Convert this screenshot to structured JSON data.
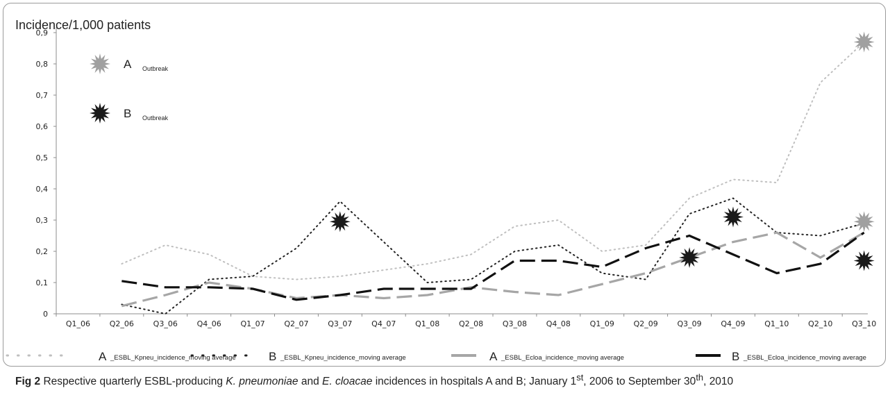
{
  "chart_data": {
    "type": "line",
    "ylabel": "Incidence/1,000 patients",
    "ylim": [
      0,
      0.9
    ],
    "yticks": [
      "0",
      "0,1",
      "0,2",
      "0,3",
      "0,4",
      "0,5",
      "0,6",
      "0,7",
      "0,8",
      "0,9"
    ],
    "categories": [
      "Q1_06",
      "Q2_06",
      "Q3_06",
      "Q4_06",
      "Q1_07",
      "Q2_07",
      "Q3_07",
      "Q4_07",
      "Q1_08",
      "Q2_08",
      "Q3_08",
      "Q4_08",
      "Q1_09",
      "Q2_09",
      "Q3_09",
      "Q4_09",
      "Q1_10",
      "Q2_10",
      "Q3_10"
    ],
    "series": [
      {
        "name": "A _ESBL_Kpneu_incidence_moving average",
        "values": [
          null,
          0.16,
          0.22,
          0.19,
          0.12,
          0.11,
          0.12,
          0.14,
          0.16,
          0.19,
          0.28,
          0.3,
          0.2,
          0.22,
          0.37,
          0.43,
          0.42,
          0.74,
          0.87
        ],
        "color": "#bfbfbf",
        "style": "dotted"
      },
      {
        "name": "B _ESBL_Kpneu_incidence_moving average",
        "values": [
          null,
          0.03,
          0.0,
          0.11,
          0.12,
          0.21,
          0.36,
          0.23,
          0.1,
          0.11,
          0.2,
          0.22,
          0.13,
          0.11,
          0.32,
          0.37,
          0.26,
          0.25,
          0.29
        ],
        "color": "#222222",
        "style": "dotted"
      },
      {
        "name": "A _ESBL_Ecloa_incidence_moving average",
        "values": [
          null,
          0.025,
          0.06,
          0.1,
          0.08,
          0.05,
          0.06,
          0.05,
          0.06,
          0.085,
          0.07,
          0.06,
          0.095,
          0.13,
          0.18,
          0.23,
          0.26,
          0.18,
          0.26
        ],
        "color": "#a6a6a6",
        "style": "dashed"
      },
      {
        "name": "B _ESBL_Ecloa_incidence_moving average",
        "values": [
          null,
          0.105,
          0.085,
          0.085,
          0.08,
          0.045,
          0.06,
          0.08,
          0.08,
          0.08,
          0.17,
          0.17,
          0.15,
          0.21,
          0.25,
          0.19,
          0.13,
          0.16,
          0.26
        ],
        "color": "#111111",
        "style": "dashed"
      }
    ],
    "outbreak_markers": [
      {
        "hospital": "A",
        "category": "Q3_10",
        "value": 0.87,
        "color": "#a0a0a0"
      },
      {
        "hospital": "A",
        "category": "Q3_10",
        "value": 0.295,
        "color": "#a0a0a0"
      },
      {
        "hospital": "B",
        "category": "Q3_07",
        "value": 0.295,
        "color": "#1a1a1a"
      },
      {
        "hospital": "B",
        "category": "Q3_09",
        "value": 0.18,
        "color": "#1a1a1a"
      },
      {
        "hospital": "B",
        "category": "Q4_09",
        "value": 0.31,
        "color": "#1a1a1a"
      },
      {
        "hospital": "B",
        "category": "Q3_10",
        "value": 0.17,
        "color": "#1a1a1a"
      }
    ],
    "outbreak_legend": [
      {
        "letter": "A",
        "text": "Outbreak",
        "color": "#a0a0a0"
      },
      {
        "letter": "B",
        "text": "Outbreak",
        "color": "#1a1a1a"
      }
    ],
    "legend": [
      {
        "letter": "A",
        "text": "_ESBL_Kpneu_incidence_moving average"
      },
      {
        "letter": "B",
        "text": "_ESBL_Kpneu_incidence_moving average"
      },
      {
        "letter": "A",
        "text": "_ESBL_Ecloa_incidence_moving average"
      },
      {
        "letter": "B",
        "text": "_ESBL_Ecloa_incidence_moving average"
      }
    ]
  },
  "caption": {
    "fig": "Fig 2",
    "part1": " Respective quarterly ESBL-producing ",
    "kpn": "K. pneumoniae",
    "part2": " and ",
    "ecl": "E. cloacae",
    "part3": " incidences in hospitals A and B; January 1",
    "sup1": "st",
    "part4": ", 2006 to September 30",
    "sup2": "th",
    "part5": ", 2010"
  }
}
